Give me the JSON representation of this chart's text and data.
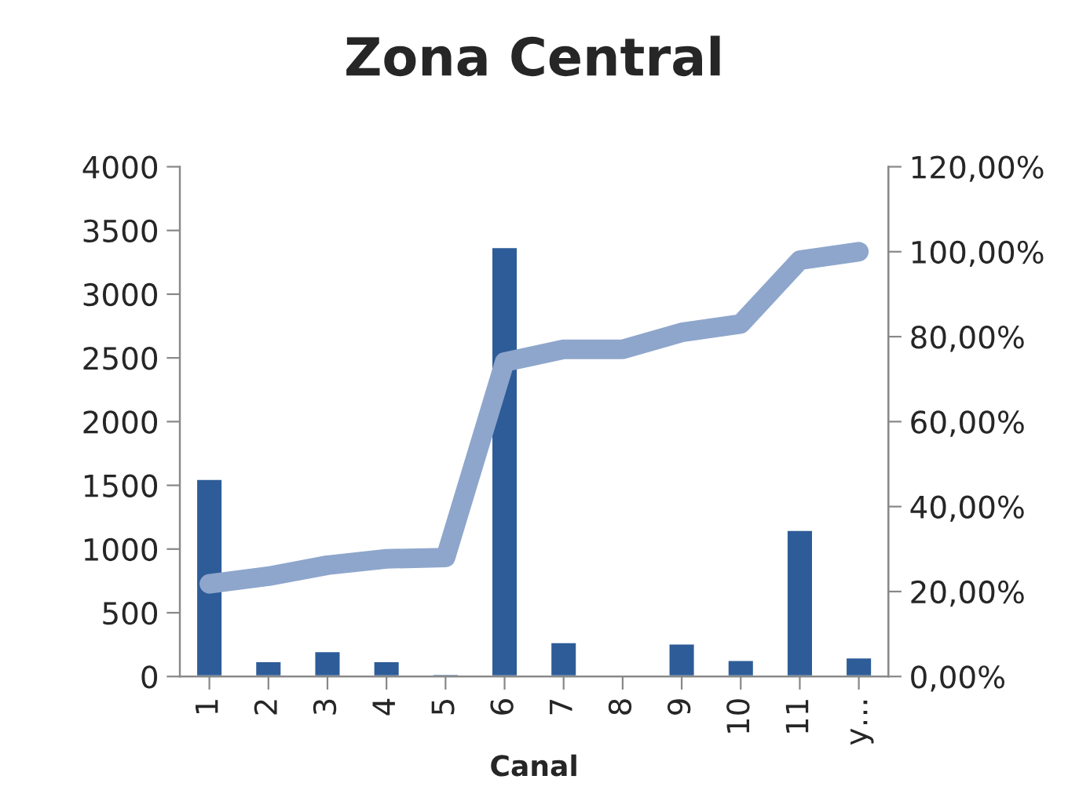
{
  "chart_data": {
    "type": "bar",
    "title": "Zona Central",
    "xlabel": "Canal",
    "categories": [
      "1",
      "2",
      "3",
      "4",
      "5",
      "6",
      "7",
      "8",
      "9",
      "10",
      "11",
      "y…"
    ],
    "series": [
      {
        "color": "#2e5c98",
        "values": [
          1550,
          120,
          200,
          120,
          20,
          3370,
          270,
          null,
          260,
          130,
          1150,
          150
        ]
      },
      {
        "type": "line",
        "axis": "y2",
        "color": "#8ea6cc",
        "values": [
          21.8,
          23.6,
          26.2,
          27.7,
          28,
          74,
          77,
          77,
          81,
          83,
          98,
          100
        ]
      }
    ],
    "ylim": [
      0,
      4000
    ],
    "yticks": [
      0,
      500,
      1000,
      1500,
      2000,
      2500,
      3000,
      3500,
      4000
    ],
    "y2lim": [
      0,
      120
    ],
    "y2ticks": [
      {
        "value": 0,
        "label": "0,00%"
      },
      {
        "value": 20,
        "label": "20,00%"
      },
      {
        "value": 40,
        "label": "40,00%"
      },
      {
        "value": 60,
        "label": "60,00%"
      },
      {
        "value": 80,
        "label": "80,00%"
      },
      {
        "value": 100,
        "label": "100,00%"
      },
      {
        "value": 120,
        "label": "120,00%"
      }
    ],
    "grid": false,
    "legend": false
  }
}
